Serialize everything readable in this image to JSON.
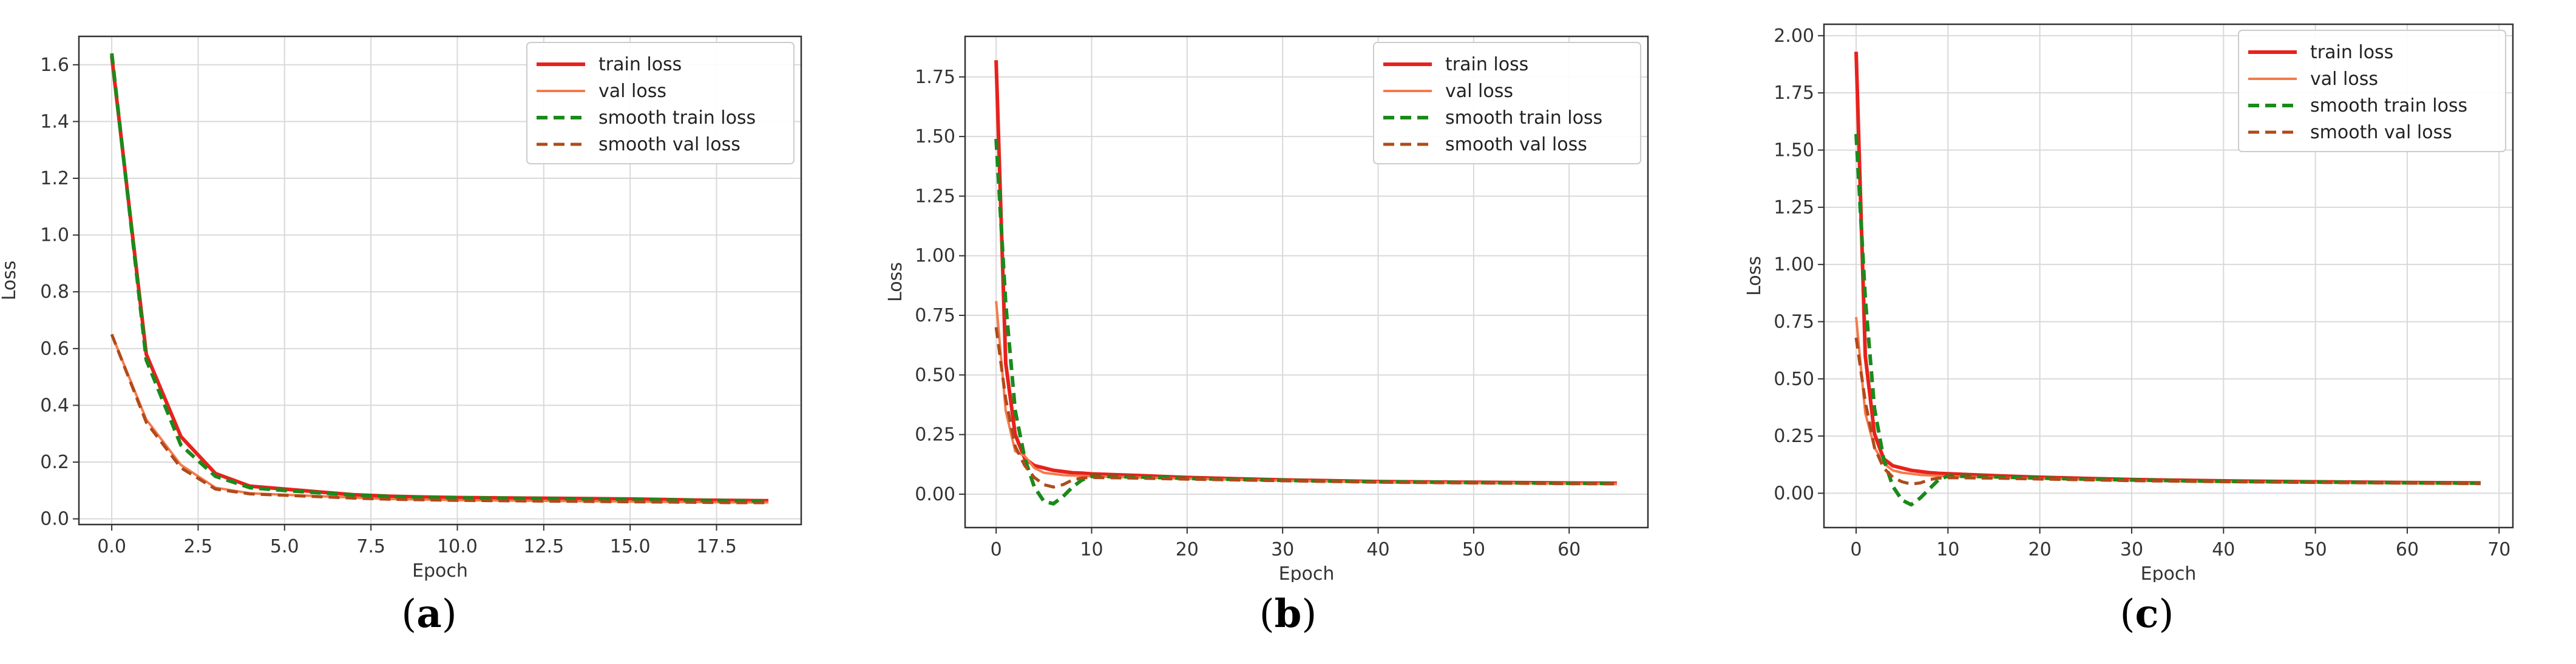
{
  "chart_data": [
    {
      "type": "line",
      "panel_label": "a",
      "xlabel": "Epoch",
      "ylabel": "Loss",
      "xlim": [
        -0.95,
        19.95
      ],
      "ylim": [
        -0.02,
        1.7
      ],
      "xticks": [
        0.0,
        2.5,
        5.0,
        7.5,
        10.0,
        12.5,
        15.0,
        17.5
      ],
      "xtick_labels": [
        "0.0",
        "2.5",
        "5.0",
        "7.5",
        "10.0",
        "12.5",
        "15.0",
        "17.5"
      ],
      "yticks": [
        0.0,
        0.2,
        0.4,
        0.6,
        0.8,
        1.0,
        1.2,
        1.4,
        1.6
      ],
      "ytick_labels": [
        "0.0",
        "0.2",
        "0.4",
        "0.6",
        "0.8",
        "1.0",
        "1.2",
        "1.4",
        "1.6"
      ],
      "grid": true,
      "legend_position": "top-right",
      "series": [
        {
          "name": "train loss",
          "color": "#e8211d",
          "dash": false,
          "width": 6,
          "x": [
            0,
            1,
            2,
            3,
            4,
            5,
            6,
            7,
            8,
            9,
            10,
            11,
            12,
            13,
            14,
            15,
            16,
            17,
            18,
            19
          ],
          "y": [
            1.63,
            0.58,
            0.29,
            0.16,
            0.115,
            0.105,
            0.095,
            0.085,
            0.08,
            0.077,
            0.075,
            0.074,
            0.073,
            0.072,
            0.071,
            0.07,
            0.068,
            0.066,
            0.065,
            0.064
          ]
        },
        {
          "name": "val loss",
          "color": "#f47a4c",
          "dash": false,
          "width": 4,
          "x": [
            0,
            1,
            2,
            3,
            4,
            5,
            6,
            7,
            8,
            9,
            10,
            11,
            12,
            13,
            14,
            15,
            16,
            17,
            18,
            19
          ],
          "y": [
            0.65,
            0.35,
            0.19,
            0.11,
            0.09,
            0.085,
            0.08,
            0.075,
            0.07,
            0.068,
            0.066,
            0.065,
            0.064,
            0.063,
            0.062,
            0.061,
            0.06,
            0.059,
            0.058,
            0.058
          ]
        },
        {
          "name": "smooth train loss",
          "color": "#1a8a1a",
          "dash": true,
          "width": 6,
          "x": [
            0,
            1,
            2,
            3,
            4,
            5,
            6,
            7,
            8,
            9,
            10,
            11,
            12,
            13,
            14,
            15,
            16,
            17,
            18,
            19
          ],
          "y": [
            1.64,
            0.56,
            0.26,
            0.15,
            0.11,
            0.1,
            0.092,
            0.084,
            0.079,
            0.076,
            0.074,
            0.073,
            0.072,
            0.071,
            0.07,
            0.069,
            0.067,
            0.065,
            0.064,
            0.063
          ]
        },
        {
          "name": "smooth val loss",
          "color": "#b04a1a",
          "dash": true,
          "width": 5,
          "x": [
            0,
            1,
            2,
            3,
            4,
            5,
            6,
            7,
            8,
            9,
            10,
            11,
            12,
            13,
            14,
            15,
            16,
            17,
            18,
            19
          ],
          "y": [
            0.65,
            0.34,
            0.18,
            0.105,
            0.088,
            0.083,
            0.078,
            0.073,
            0.069,
            0.067,
            0.065,
            0.064,
            0.063,
            0.062,
            0.061,
            0.06,
            0.059,
            0.058,
            0.057,
            0.057
          ]
        }
      ]
    },
    {
      "type": "line",
      "panel_label": "b",
      "xlabel": "Epoch",
      "ylabel": "Loss",
      "xlim": [
        -3.25,
        68.25
      ],
      "ylim": [
        -0.14,
        1.92
      ],
      "xticks": [
        0,
        10,
        20,
        30,
        40,
        50,
        60
      ],
      "xtick_labels": [
        "0",
        "10",
        "20",
        "30",
        "40",
        "50",
        "60"
      ],
      "yticks": [
        0.0,
        0.25,
        0.5,
        0.75,
        1.0,
        1.25,
        1.5,
        1.75
      ],
      "ytick_labels": [
        "0.00",
        "0.25",
        "0.50",
        "0.75",
        "1.00",
        "1.25",
        "1.50",
        "1.75"
      ],
      "grid": true,
      "legend_position": "top-right",
      "series": [
        {
          "name": "train loss",
          "color": "#e8211d",
          "dash": false,
          "width": 6,
          "x": [
            0,
            1,
            2,
            3,
            4,
            5,
            6,
            7,
            8,
            9,
            10,
            15,
            20,
            30,
            40,
            50,
            60,
            65
          ],
          "y": [
            1.82,
            0.55,
            0.25,
            0.15,
            0.12,
            0.11,
            0.1,
            0.095,
            0.09,
            0.088,
            0.085,
            0.078,
            0.07,
            0.06,
            0.053,
            0.05,
            0.047,
            0.046
          ]
        },
        {
          "name": "val loss",
          "color": "#f47a4c",
          "dash": false,
          "width": 4,
          "x": [
            0,
            1,
            2,
            3,
            4,
            5,
            6,
            7,
            8,
            9,
            10,
            15,
            20,
            30,
            40,
            50,
            60,
            65
          ],
          "y": [
            0.81,
            0.35,
            0.18,
            0.16,
            0.11,
            0.09,
            0.085,
            0.08,
            0.078,
            0.077,
            0.075,
            0.07,
            0.065,
            0.057,
            0.051,
            0.048,
            0.045,
            0.044
          ]
        },
        {
          "name": "smooth train loss",
          "color": "#1a8a1a",
          "dash": true,
          "width": 6,
          "x": [
            0,
            1,
            2,
            3,
            4,
            5,
            6,
            7,
            8,
            9,
            10,
            15,
            20,
            30,
            40,
            50,
            60,
            65
          ],
          "y": [
            1.49,
            0.8,
            0.35,
            0.15,
            0.03,
            -0.03,
            -0.04,
            -0.01,
            0.03,
            0.06,
            0.075,
            0.072,
            0.066,
            0.058,
            0.052,
            0.049,
            0.046,
            0.045
          ]
        },
        {
          "name": "smooth val loss",
          "color": "#b04a1a",
          "dash": true,
          "width": 5,
          "x": [
            0,
            1,
            2,
            3,
            4,
            5,
            6,
            7,
            8,
            9,
            10,
            15,
            20,
            30,
            40,
            50,
            60,
            65
          ],
          "y": [
            0.7,
            0.4,
            0.2,
            0.12,
            0.07,
            0.04,
            0.03,
            0.04,
            0.06,
            0.068,
            0.07,
            0.067,
            0.063,
            0.056,
            0.05,
            0.047,
            0.044,
            0.043
          ]
        }
      ]
    },
    {
      "type": "line",
      "panel_label": "c",
      "xlabel": "Epoch",
      "ylabel": "Loss",
      "xlim": [
        -3.5,
        71.5
      ],
      "ylim": [
        -0.15,
        2.05
      ],
      "xticks": [
        0,
        10,
        20,
        30,
        40,
        50,
        60,
        70
      ],
      "xtick_labels": [
        "0",
        "10",
        "20",
        "30",
        "40",
        "50",
        "60",
        "70"
      ],
      "yticks": [
        0.0,
        0.25,
        0.5,
        0.75,
        1.0,
        1.25,
        1.5,
        1.75,
        2.0
      ],
      "ytick_labels": [
        "0.00",
        "0.25",
        "0.50",
        "0.75",
        "1.00",
        "1.25",
        "1.50",
        "1.75",
        "2.00"
      ],
      "grid": true,
      "legend_position": "top-right",
      "series": [
        {
          "name": "train loss",
          "color": "#e8211d",
          "dash": false,
          "width": 6,
          "x": [
            0,
            1,
            2,
            3,
            4,
            5,
            6,
            7,
            8,
            9,
            10,
            15,
            20,
            30,
            40,
            50,
            60,
            68
          ],
          "y": [
            1.93,
            0.6,
            0.26,
            0.15,
            0.12,
            0.11,
            0.1,
            0.095,
            0.09,
            0.087,
            0.085,
            0.077,
            0.07,
            0.06,
            0.054,
            0.05,
            0.047,
            0.045
          ]
        },
        {
          "name": "val loss",
          "color": "#f47a4c",
          "dash": false,
          "width": 4,
          "x": [
            0,
            1,
            2,
            3,
            4,
            5,
            6,
            7,
            8,
            9,
            10,
            15,
            20,
            30,
            40,
            50,
            60,
            68
          ],
          "y": [
            0.77,
            0.35,
            0.2,
            0.13,
            0.1,
            0.09,
            0.085,
            0.08,
            0.078,
            0.076,
            0.074,
            0.069,
            0.064,
            0.056,
            0.05,
            0.047,
            0.045,
            0.043
          ]
        },
        {
          "name": "smooth train loss",
          "color": "#1a8a1a",
          "dash": true,
          "width": 6,
          "x": [
            0,
            1,
            2,
            3,
            4,
            5,
            6,
            7,
            8,
            9,
            10,
            15,
            20,
            30,
            40,
            50,
            60,
            68
          ],
          "y": [
            1.57,
            0.85,
            0.37,
            0.15,
            0.03,
            -0.03,
            -0.05,
            -0.02,
            0.02,
            0.06,
            0.075,
            0.072,
            0.066,
            0.058,
            0.052,
            0.049,
            0.046,
            0.044
          ]
        },
        {
          "name": "smooth val loss",
          "color": "#b04a1a",
          "dash": true,
          "width": 5,
          "x": [
            0,
            1,
            2,
            3,
            4,
            5,
            6,
            7,
            8,
            9,
            10,
            15,
            20,
            30,
            40,
            50,
            60,
            68
          ],
          "y": [
            0.68,
            0.4,
            0.2,
            0.11,
            0.07,
            0.05,
            0.04,
            0.045,
            0.06,
            0.066,
            0.068,
            0.066,
            0.062,
            0.055,
            0.05,
            0.047,
            0.044,
            0.042
          ]
        }
      ]
    }
  ]
}
